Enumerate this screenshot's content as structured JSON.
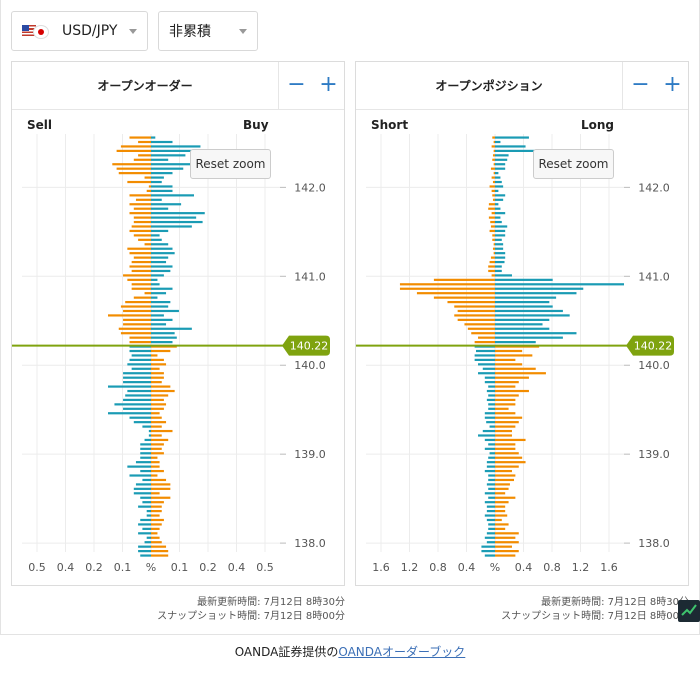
{
  "toolbar": {
    "pair": {
      "label": "USD/JPY",
      "icon": "us-jp-flag-icon"
    },
    "mode": {
      "label": "非累積"
    }
  },
  "colors": {
    "orange": "#f28c00",
    "teal": "#1a9bb4",
    "price": "#7fa30f"
  },
  "panels": [
    {
      "title": "オープンオーダー",
      "left_label": "Sell",
      "right_label": "Buy",
      "reset_label": "Reset zoom",
      "minus_label": "−",
      "plus_label": "+",
      "footnote_updated": "最新更新時間: 7月12日 8時30分",
      "footnote_snapshot": "スナップショット時間: 7月12日 8時00分"
    },
    {
      "title": "オープンポジション",
      "left_label": "Short",
      "right_label": "Long",
      "reset_label": "Reset zoom",
      "minus_label": "−",
      "plus_label": "+",
      "footnote_updated": "最新更新時間: 7月12日 8時30分",
      "footnote_snapshot": "スナップショット時間: 7月12日 8時00分"
    }
  ],
  "credit": {
    "prefix": "OANDA証券提供の",
    "link": "OANDAオーダーブック"
  },
  "chart_data": [
    {
      "type": "bar",
      "orientation": "horizontal",
      "ylim": [
        137.9,
        142.6
      ],
      "y_ticks": [
        138.0,
        139.0,
        140.0,
        141.0,
        142.0
      ],
      "xlim": [
        -0.6,
        0.6
      ],
      "x_tick_labels": [
        "0.5",
        "0.4",
        "0.2",
        "0.1",
        "%",
        "0.1",
        "0.2",
        "0.4",
        "0.5"
      ],
      "current_price": 140.22,
      "price_step": 0.05,
      "sell_series": [
        0.1,
        0.06,
        0.14,
        0.16,
        0.06,
        0.08,
        0.18,
        0.16,
        0.15,
        0.03,
        0.11,
        0.01,
        0.02,
        0.1,
        0.07,
        0.1,
        0.08,
        0.1,
        0.08,
        0.08,
        0.09,
        0.1,
        0.08,
        0.06,
        0.03,
        0.11,
        0.1,
        0.08,
        0.09,
        0.1,
        0.09,
        0.13,
        0.11,
        0.09,
        0.09,
        0.03,
        0.08,
        0.12,
        0.14,
        0.13,
        0.2,
        0.13,
        0.13,
        0.15,
        0.14,
        0.1,
        0.1,
        0.1,
        0.1,
        0.09,
        0.1,
        0.11,
        0.09,
        0.13,
        0.13,
        0.13,
        0.2,
        0.11,
        0.12,
        0.13,
        0.17,
        0.13,
        0.2,
        0.1,
        0.08,
        0.04,
        0.01,
        0.01,
        0.03,
        0.05,
        0.05,
        0.05,
        0.05,
        0.07,
        0.11,
        0.05,
        0.1,
        0.04,
        0.07,
        0.08,
        0.08,
        0.05,
        0.04,
        0.06,
        0.02,
        0.02,
        0.05,
        0.06,
        0.04,
        0.06,
        0.02,
        0.03,
        0.06,
        0.06,
        0.05
      ],
      "buy_series": [
        0.02,
        0.1,
        0.23,
        0.32,
        0.16,
        0.08,
        0.4,
        0.15,
        0.1,
        0.06,
        0.05,
        0.1,
        0.1,
        0.2,
        0.05,
        0.14,
        0.08,
        0.25,
        0.21,
        0.24,
        0.19,
        0.08,
        0.04,
        0.05,
        0.08,
        0.1,
        0.11,
        0.08,
        0.07,
        0.1,
        0.09,
        0.06,
        0.03,
        0.04,
        0.1,
        0.07,
        0.03,
        0.09,
        0.08,
        0.13,
        0.06,
        0.1,
        0.07,
        0.19,
        0.11,
        0.12,
        0.1,
        0.12,
        0.09,
        0.03,
        0.06,
        0.07,
        0.04,
        0.06,
        0.06,
        0.05,
        0.09,
        0.11,
        0.08,
        0.06,
        0.07,
        0.06,
        0.04,
        0.05,
        0.07,
        0.05,
        0.1,
        0.05,
        0.08,
        0.06,
        0.05,
        0.06,
        0.03,
        0.04,
        0.04,
        0.06,
        0.03,
        0.07,
        0.09,
        0.09,
        0.04,
        0.09,
        0.06,
        0.05,
        0.05,
        0.04,
        0.06,
        0.05,
        0.04,
        0.03,
        0.04,
        0.05,
        0.07,
        0.08,
        0.08
      ]
    },
    {
      "type": "bar",
      "orientation": "horizontal",
      "ylim": [
        137.9,
        142.6
      ],
      "y_ticks": [
        138.0,
        139.0,
        140.0,
        141.0,
        142.0
      ],
      "xlim": [
        -1.9,
        1.9
      ],
      "x_tick_labels": [
        "1.6",
        "1.2",
        "0.8",
        "0.4",
        "%",
        "0.4",
        "0.8",
        "1.2",
        "1.6"
      ],
      "current_price": 140.22,
      "price_step": 0.05,
      "short_series": [
        0.04,
        0.02,
        0.05,
        0.02,
        0.03,
        0.04,
        0.02,
        0.06,
        0.02,
        0.05,
        0.03,
        0.08,
        0.05,
        0.04,
        0.03,
        0.09,
        0.1,
        0.05,
        0.09,
        0.07,
        0.06,
        0.08,
        0.04,
        0.04,
        0.02,
        0.03,
        0.02,
        0.06,
        0.08,
        0.1,
        0.1,
        0.05,
        0.9,
        1.4,
        1.4,
        1.15,
        0.9,
        0.7,
        0.6,
        0.55,
        0.6,
        0.55,
        0.45,
        0.4,
        0.35,
        0.25,
        0.3,
        0.3,
        0.28,
        0.3,
        0.3,
        0.25,
        0.18,
        0.25,
        0.15,
        0.15,
        0.1,
        0.12,
        0.1,
        0.12,
        0.1,
        0.1,
        0.15,
        0.15,
        0.13,
        0.08,
        0.18,
        0.25,
        0.15,
        0.1,
        0.15,
        0.08,
        0.1,
        0.12,
        0.12,
        0.15,
        0.1,
        0.1,
        0.12,
        0.1,
        0.15,
        0.1,
        0.15,
        0.12,
        0.12,
        0.15,
        0.12,
        0.1,
        0.1,
        0.12,
        0.15,
        0.12,
        0.2,
        0.2,
        0.15
      ],
      "long_series": [
        0.5,
        0.08,
        0.45,
        0.6,
        0.2,
        0.18,
        0.15,
        0.15,
        0.05,
        0.08,
        0.1,
        0.12,
        0.05,
        0.15,
        0.12,
        0.05,
        0.08,
        0.15,
        0.08,
        0.1,
        0.18,
        0.15,
        0.15,
        0.1,
        0.12,
        0.12,
        0.15,
        0.15,
        0.14,
        0.1,
        0.1,
        0.25,
        0.85,
        1.9,
        1.3,
        1.2,
        0.9,
        0.8,
        0.85,
        1.0,
        1.1,
        0.8,
        0.7,
        0.8,
        1.2,
        1.0,
        0.6,
        0.65,
        0.4,
        0.55,
        0.3,
        0.4,
        0.6,
        0.75,
        0.5,
        0.35,
        0.3,
        0.5,
        0.35,
        0.3,
        0.3,
        0.2,
        0.3,
        0.4,
        0.35,
        0.3,
        0.25,
        0.25,
        0.45,
        0.3,
        0.3,
        0.35,
        0.4,
        0.45,
        0.35,
        0.25,
        0.3,
        0.28,
        0.22,
        0.2,
        0.15,
        0.3,
        0.2,
        0.15,
        0.15,
        0.18,
        0.1,
        0.2,
        0.15,
        0.35,
        0.3,
        0.35,
        0.25,
        0.35,
        0.3
      ]
    }
  ]
}
